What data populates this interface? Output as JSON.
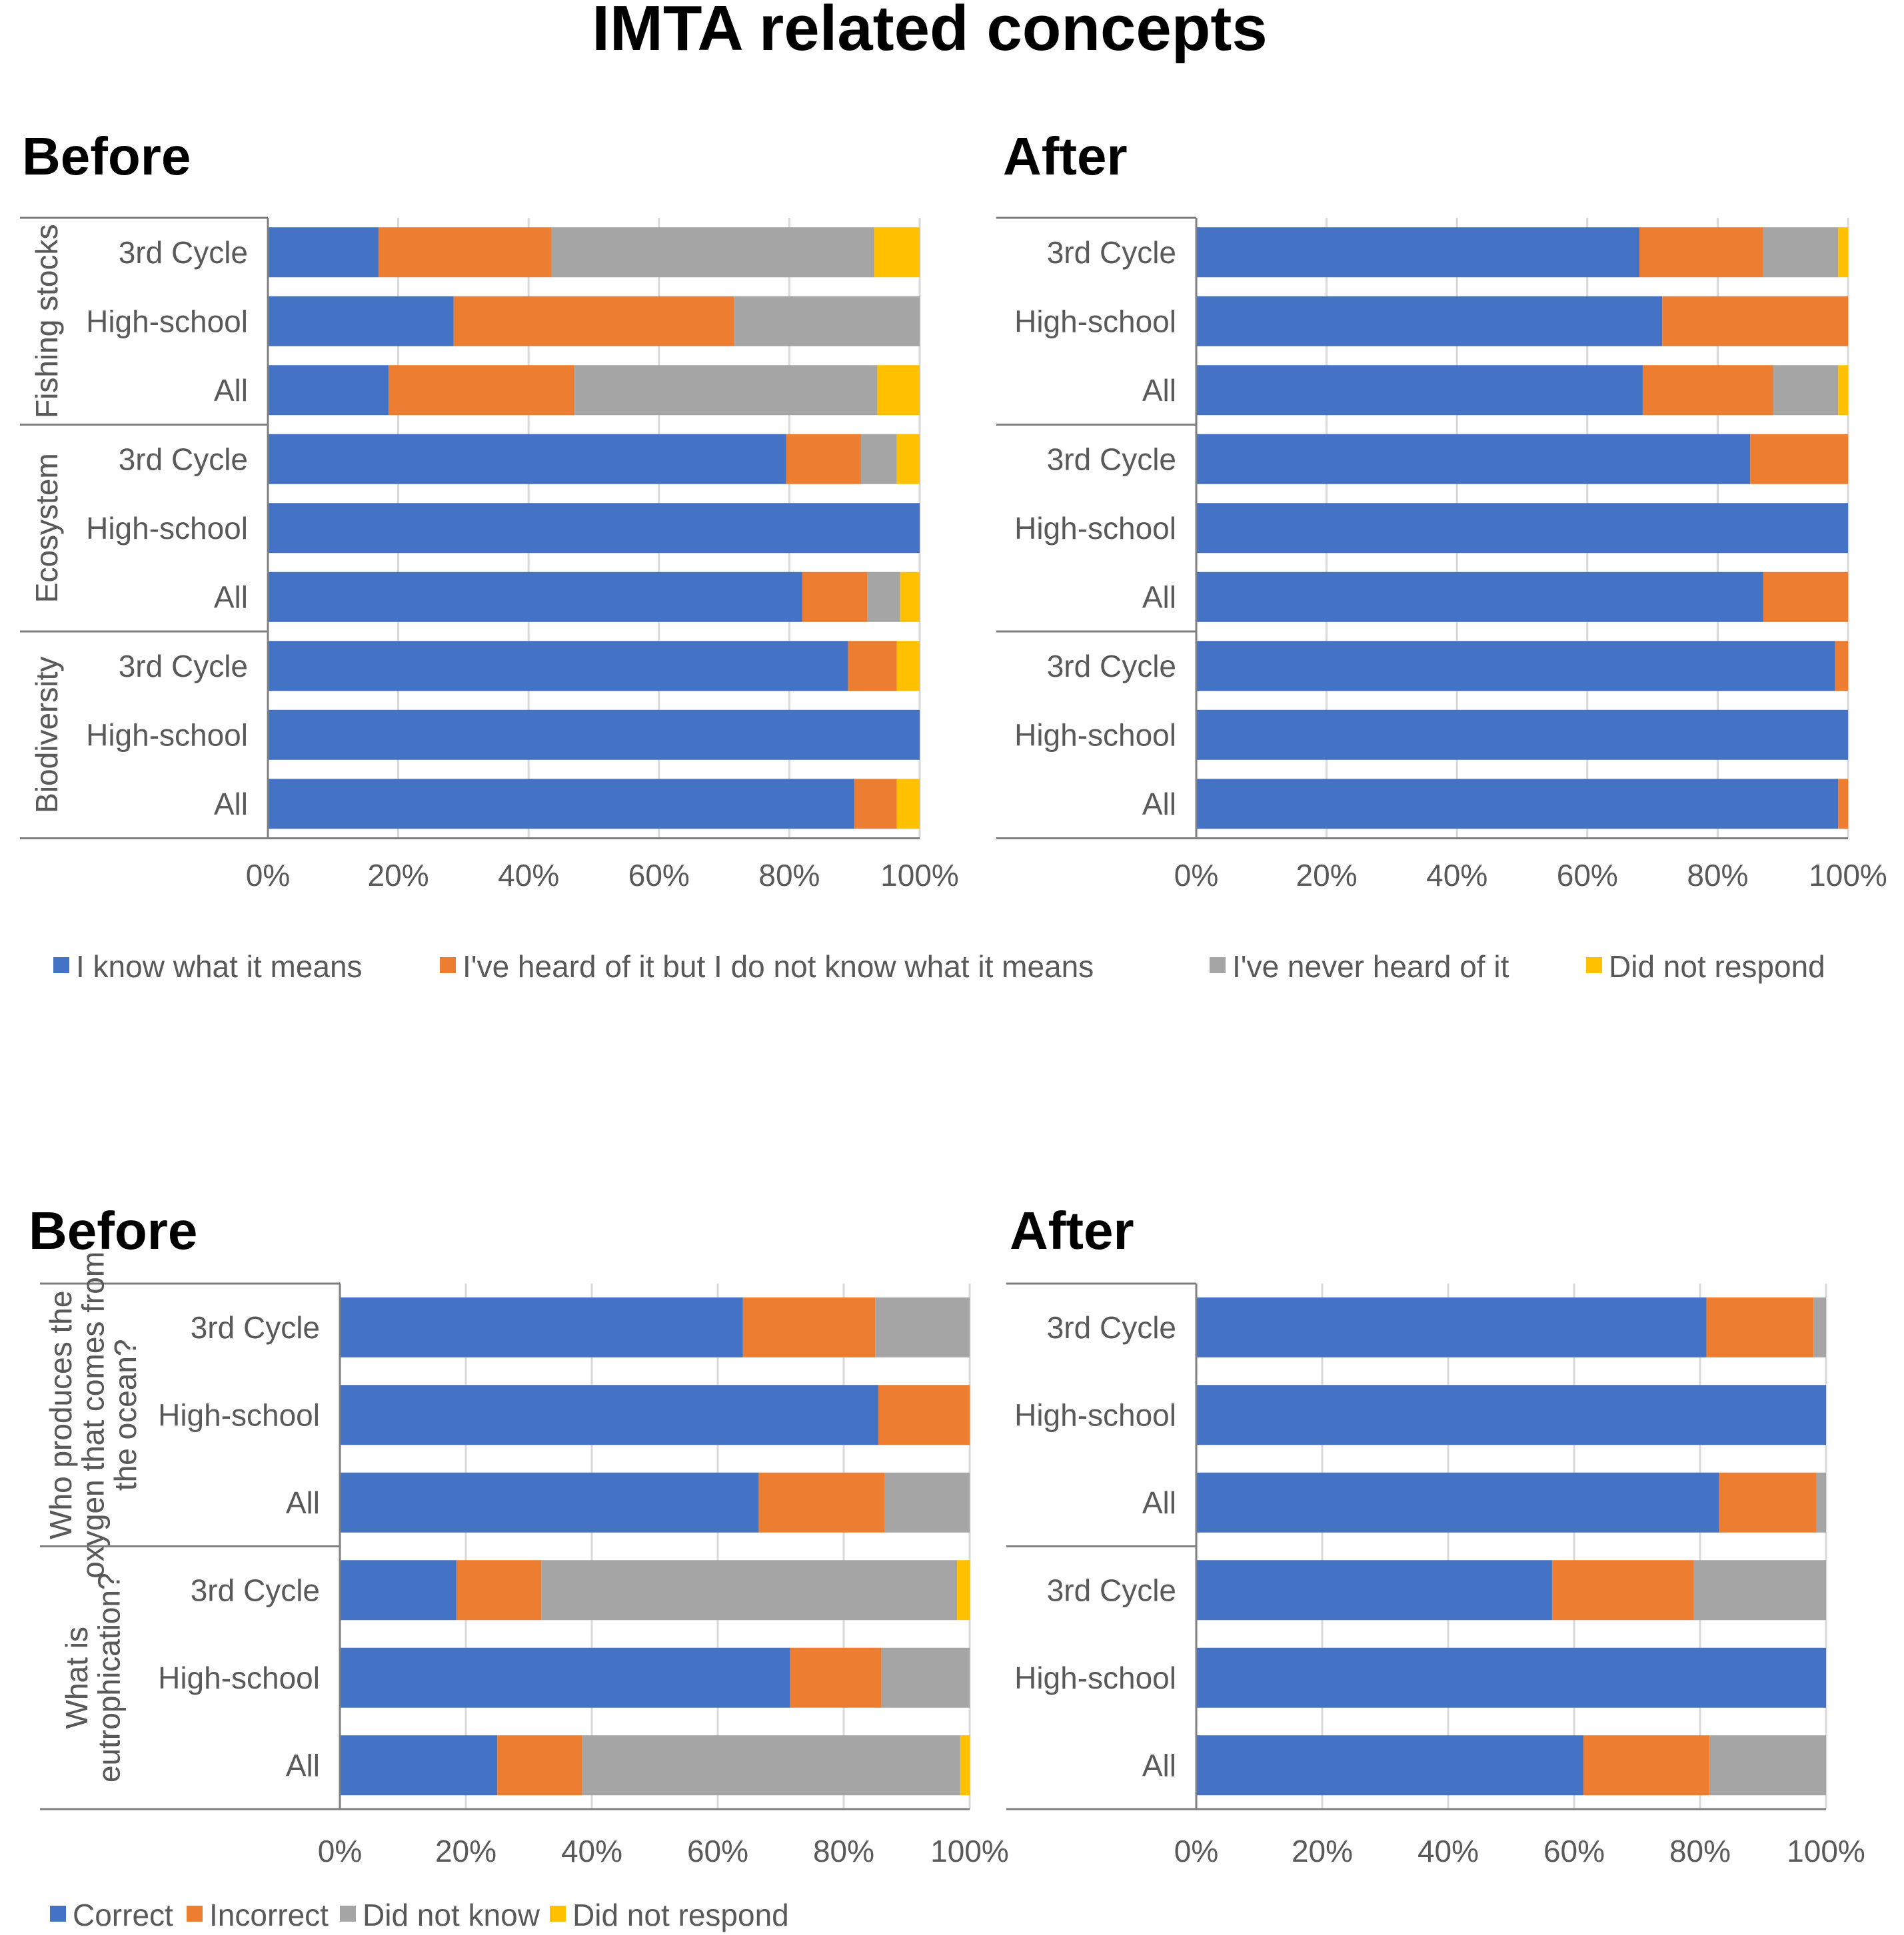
{
  "title": "IMTA related concepts",
  "chart_data": [
    {
      "type": "bar",
      "orientation": "horizontal",
      "stacked": "percent",
      "title": "Before",
      "groups": [
        "Fishing stocks",
        "Ecosystem",
        "Biodiversity"
      ],
      "categories": [
        "3rd Cycle",
        "High-school",
        "All"
      ],
      "series": [
        {
          "name": "I know what it means",
          "color": "#4472C4",
          "values": [
            [
              17,
              28.5,
              18.5
            ],
            [
              79.5,
              100,
              82
            ],
            [
              89,
              100,
              90
            ]
          ]
        },
        {
          "name": "I've heard of it but I do not know what it means",
          "color": "#ED7D31",
          "values": [
            [
              26.5,
              43,
              28.5
            ],
            [
              11.5,
              0,
              10
            ],
            [
              7.5,
              0,
              6.5
            ]
          ]
        },
        {
          "name": "I've never heard of it",
          "color": "#A5A5A5",
          "values": [
            [
              49.5,
              28.5,
              46.5
            ],
            [
              5.5,
              0,
              5
            ],
            [
              0,
              0,
              0
            ]
          ]
        },
        {
          "name": "Did not respond",
          "color": "#FFC000",
          "values": [
            [
              7,
              0,
              6.5
            ],
            [
              3.5,
              0,
              3
            ],
            [
              3.5,
              0,
              3.5
            ]
          ]
        }
      ],
      "xlim": [
        0,
        100
      ],
      "ticks": [
        "0%",
        "20%",
        "40%",
        "60%",
        "80%",
        "100%"
      ]
    },
    {
      "type": "bar",
      "orientation": "horizontal",
      "stacked": "percent",
      "title": "After",
      "groups": [
        "Fishing stocks",
        "Ecosystem",
        "Biodiversity"
      ],
      "categories": [
        "3rd Cycle",
        "High-school",
        "All"
      ],
      "series": [
        {
          "name": "I know what it means",
          "color": "#4472C4",
          "values": [
            [
              68,
              71.5,
              68.5
            ],
            [
              85,
              100,
              87
            ],
            [
              98,
              100,
              98.5
            ]
          ]
        },
        {
          "name": "I've heard of it but I do not know what it means",
          "color": "#ED7D31",
          "values": [
            [
              19,
              28.5,
              20
            ],
            [
              15,
              0,
              13
            ],
            [
              2,
              0,
              1.5
            ]
          ]
        },
        {
          "name": "I've never heard of it",
          "color": "#A5A5A5",
          "values": [
            [
              11.5,
              0,
              10
            ],
            [
              0,
              0,
              0
            ],
            [
              0,
              0,
              0
            ]
          ]
        },
        {
          "name": "Did not respond",
          "color": "#FFC000",
          "values": [
            [
              1.5,
              0,
              1.5
            ],
            [
              0,
              0,
              0
            ],
            [
              0,
              0,
              0
            ]
          ]
        }
      ],
      "xlim": [
        0,
        100
      ],
      "ticks": [
        "0%",
        "20%",
        "40%",
        "60%",
        "80%",
        "100%"
      ]
    },
    {
      "type": "bar",
      "orientation": "horizontal",
      "stacked": "percent",
      "title": "Before",
      "groups": [
        "Who produces the oxygen that comes from the ocean?",
        "What is eutrophication?"
      ],
      "categories": [
        "3rd Cycle",
        "High-school",
        "All"
      ],
      "series": [
        {
          "name": "Correct",
          "color": "#4472C4",
          "values": [
            [
              64,
              85.5,
              66.5
            ],
            [
              18.5,
              71.5,
              25
            ]
          ]
        },
        {
          "name": "Incorrect",
          "color": "#ED7D31",
          "values": [
            [
              21,
              14.5,
              20
            ],
            [
              13.5,
              14.5,
              13.5
            ]
          ]
        },
        {
          "name": "Did not know",
          "color": "#A5A5A5",
          "values": [
            [
              15,
              0,
              13.5
            ],
            [
              66,
              14,
              60
            ]
          ]
        },
        {
          "name": "Did not respond",
          "color": "#FFC000",
          "values": [
            [
              0,
              0,
              0
            ],
            [
              2,
              0,
              1.5
            ]
          ]
        }
      ],
      "xlim": [
        0,
        100
      ],
      "ticks": [
        "0%",
        "20%",
        "40%",
        "60%",
        "80%",
        "100%"
      ]
    },
    {
      "type": "bar",
      "orientation": "horizontal",
      "stacked": "percent",
      "title": "After",
      "groups": [
        "Who produces the oxygen that comes from the ocean?",
        "What is eutrophication?"
      ],
      "categories": [
        "3rd Cycle",
        "High-school",
        "All"
      ],
      "series": [
        {
          "name": "Correct",
          "color": "#4472C4",
          "values": [
            [
              81,
              100,
              83
            ],
            [
              56.5,
              100,
              61.5
            ]
          ]
        },
        {
          "name": "Incorrect",
          "color": "#ED7D31",
          "values": [
            [
              17,
              0,
              15.5
            ],
            [
              22.5,
              0,
              20
            ]
          ]
        },
        {
          "name": "Did not know",
          "color": "#A5A5A5",
          "values": [
            [
              2,
              0,
              1.5
            ],
            [
              21,
              0,
              18.5
            ]
          ]
        },
        {
          "name": "Did not respond",
          "color": "#FFC000",
          "values": [
            [
              0,
              0,
              0
            ],
            [
              0,
              0,
              0
            ]
          ]
        }
      ],
      "xlim": [
        0,
        100
      ],
      "ticks": [
        "0%",
        "20%",
        "40%",
        "60%",
        "80%",
        "100%"
      ]
    }
  ],
  "legends": [
    {
      "items": [
        {
          "name": "I know what it means",
          "color": "#4472C4"
        },
        {
          "name": "I've heard of it but I do not know what it means",
          "color": "#ED7D31"
        },
        {
          "name": "I've never heard of it",
          "color": "#A5A5A5"
        },
        {
          "name": "Did not respond",
          "color": "#FFC000"
        }
      ]
    },
    {
      "items": [
        {
          "name": "Correct",
          "color": "#4472C4"
        },
        {
          "name": "Incorrect",
          "color": "#ED7D31"
        },
        {
          "name": "Did not know",
          "color": "#A5A5A5"
        },
        {
          "name": "Did not respond",
          "color": "#FFC000"
        }
      ]
    }
  ]
}
